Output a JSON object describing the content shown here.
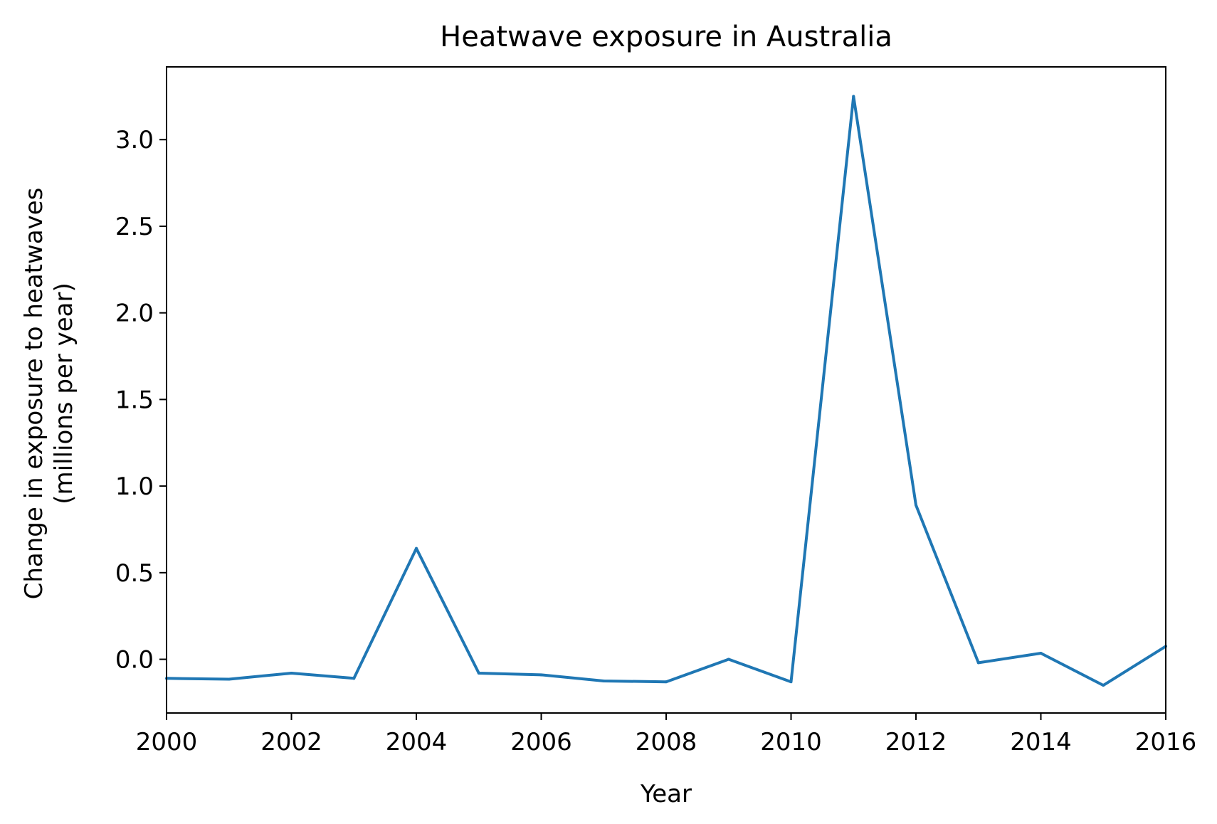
{
  "chart_data": {
    "type": "line",
    "title": "Heatwave exposure in Australia",
    "xlabel": "Year",
    "ylabel_lines": [
      "Change in exposure to heatwaves",
      "(millions per year)"
    ],
    "xlim": [
      2000,
      2016
    ],
    "ylim": [
      -0.31,
      3.42
    ],
    "xticks": [
      2000,
      2002,
      2004,
      2006,
      2008,
      2010,
      2012,
      2014,
      2016
    ],
    "yticks": [
      0.0,
      0.5,
      1.0,
      1.5,
      2.0,
      2.5,
      3.0
    ],
    "ytick_labels": [
      "0.0",
      "0.5",
      "1.0",
      "1.5",
      "2.0",
      "2.5",
      "3.0"
    ],
    "grid": false,
    "series": [
      {
        "color": "#1f77b4",
        "x": [
          2000,
          2001,
          2002,
          2003,
          2004,
          2005,
          2006,
          2007,
          2008,
          2009,
          2010,
          2011,
          2012,
          2013,
          2014,
          2015,
          2016
        ],
        "values": [
          -0.11,
          -0.115,
          -0.08,
          -0.11,
          0.64,
          -0.08,
          -0.09,
          -0.125,
          -0.13,
          0.0,
          -0.13,
          3.25,
          0.89,
          -0.02,
          0.035,
          -0.15,
          0.075
        ]
      }
    ]
  }
}
